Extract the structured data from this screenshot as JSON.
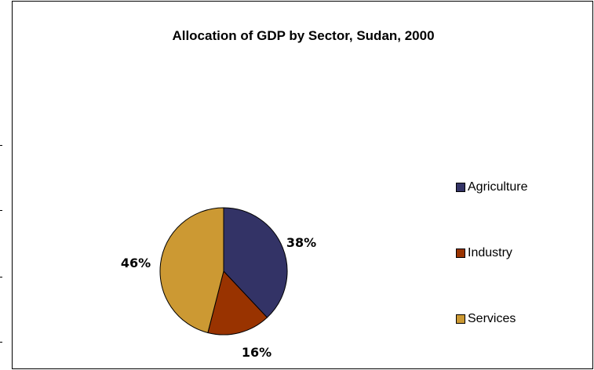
{
  "chart_data": {
    "type": "pie",
    "title": "Allocation of GDP by Sector, Sudan, 2000",
    "categories": [
      "Agriculture",
      "Industry",
      "Services"
    ],
    "values": [
      38,
      16,
      46
    ],
    "labels": [
      "38%",
      "16%",
      "46%"
    ],
    "colors": [
      "#333366",
      "#993300",
      "#CC9933"
    ],
    "legend_position": "right"
  }
}
